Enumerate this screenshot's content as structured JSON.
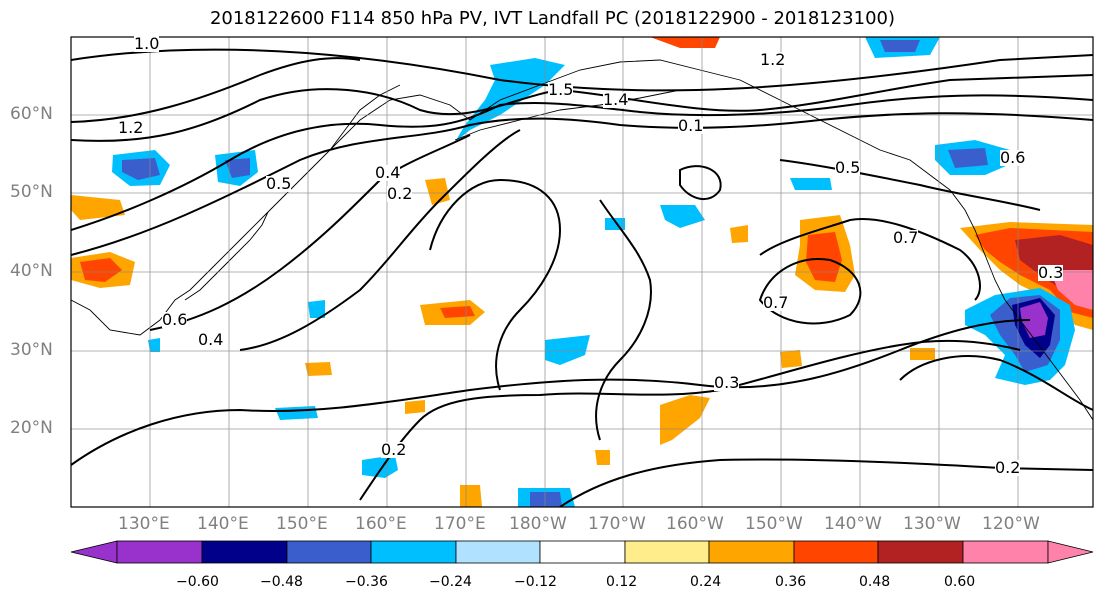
{
  "title": "2018122600 F114 850 hPa PV, IVT Landfall PC (2018122900 - 2018123100)",
  "lat_ticks": [
    "60°N",
    "50°N",
    "40°N",
    "30°N",
    "20°N"
  ],
  "lon_ticks": [
    "130°E",
    "140°E",
    "150°E",
    "160°E",
    "170°E",
    "180°W",
    "170°W",
    "160°W",
    "150°W",
    "140°W",
    "130°W",
    "120°W"
  ],
  "colorbar": {
    "labels": [
      "−0.60",
      "−0.48",
      "−0.36",
      "−0.24",
      "−0.12",
      "0.12",
      "0.24",
      "0.36",
      "0.48",
      "0.60"
    ],
    "colors": [
      "#9932cc",
      "#00008b",
      "#3a5fcd",
      "#00bfff",
      "#b0e2ff",
      "#ffffff",
      "#ffec8b",
      "#ffa500",
      "#ff4500",
      "#b22222",
      "#ff82ab"
    ]
  },
  "contour_labels": [
    "1.0",
    "1.2",
    "1.2",
    "1.5",
    "1.4",
    "0.5",
    "0.2",
    "0.4",
    "0.5",
    "0.7",
    "0.7",
    "0.3",
    "0.2",
    "0.2",
    "0.4",
    "0.6",
    "0.3",
    "0.1",
    "0.6"
  ]
}
